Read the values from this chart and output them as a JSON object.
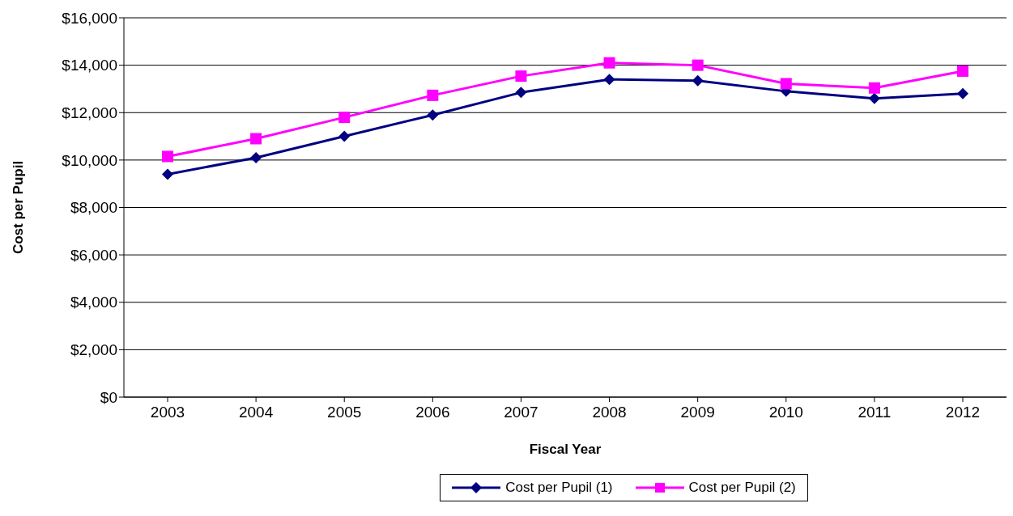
{
  "chart_data": {
    "type": "line",
    "xlabel": "Fiscal Year",
    "ylabel": "Cost per Pupil",
    "categories": [
      "2003",
      "2004",
      "2005",
      "2006",
      "2007",
      "2008",
      "2009",
      "2010",
      "2011",
      "2012"
    ],
    "series": [
      {
        "name": "Cost per Pupil (1)",
        "color": "#000080",
        "marker": "diamond",
        "values": [
          9400,
          10100,
          11000,
          11900,
          12850,
          13400,
          13350,
          12900,
          12600,
          12800
        ]
      },
      {
        "name": "Cost per Pupil (2)",
        "color": "#ff00ff",
        "marker": "square",
        "values": [
          10150,
          10900,
          11800,
          12730,
          13540,
          14100,
          14000,
          13220,
          13040,
          13750
        ]
      }
    ],
    "ylim": [
      0,
      16000
    ],
    "yticks": [
      {
        "value": 0,
        "label": "$0"
      },
      {
        "value": 2000,
        "label": "$2,000"
      },
      {
        "value": 4000,
        "label": "$4,000"
      },
      {
        "value": 6000,
        "label": "$6,000"
      },
      {
        "value": 8000,
        "label": "$8,000"
      },
      {
        "value": 10000,
        "label": "$10,000"
      },
      {
        "value": 12000,
        "label": "$12,000"
      },
      {
        "value": 14000,
        "label": "$14,000"
      },
      {
        "value": 16000,
        "label": "$16,000"
      }
    ],
    "grid": "y",
    "legend": "bottom",
    "line_style": "solid"
  }
}
